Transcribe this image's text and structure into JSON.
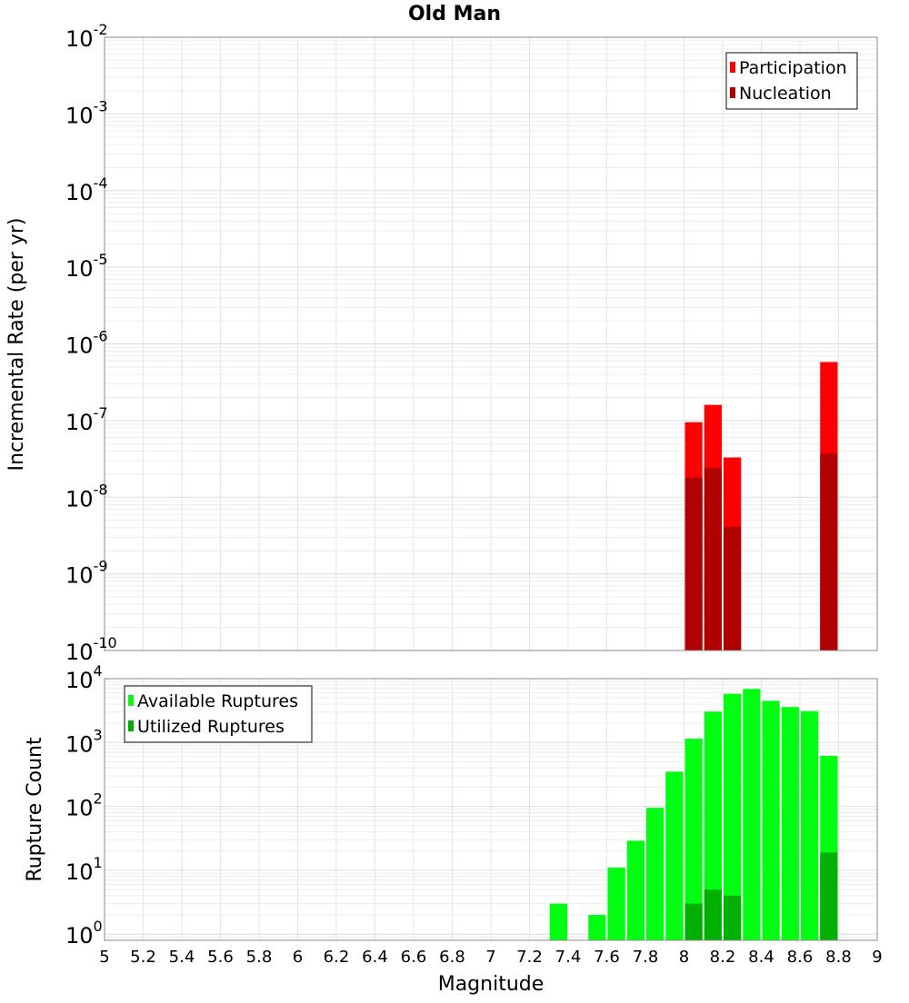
{
  "chart_data": [
    {
      "type": "bar",
      "title": "Old Man",
      "xlabel": "",
      "ylabel": "Incremental Rate (per yr)",
      "yscale": "log",
      "ylim": [
        1e-10,
        0.01
      ],
      "xlim": [
        5,
        9
      ],
      "grid": true,
      "legend": "top-right",
      "bin_width": 0.1,
      "series": [
        {
          "name": "Participation",
          "color": "#ff0000",
          "x": [
            8.05,
            8.15,
            8.25,
            8.75
          ],
          "values": [
            9.5e-08,
            1.6e-07,
            3.3e-08,
            5.8e-07
          ]
        },
        {
          "name": "Nucleation",
          "color": "#b00000",
          "x": [
            8.05,
            8.15,
            8.25,
            8.75
          ],
          "values": [
            1.8e-08,
            2.4e-08,
            4.1e-09,
            3.7e-08
          ]
        }
      ],
      "ytick_labels": [
        {
          "base": "10",
          "exp": "-10"
        },
        {
          "base": "10",
          "exp": "-9"
        },
        {
          "base": "10",
          "exp": "-8"
        },
        {
          "base": "10",
          "exp": "-7"
        },
        {
          "base": "10",
          "exp": "-6"
        },
        {
          "base": "10",
          "exp": "-5"
        },
        {
          "base": "10",
          "exp": "-4"
        },
        {
          "base": "10",
          "exp": "-3"
        },
        {
          "base": "10",
          "exp": "-2"
        }
      ]
    },
    {
      "type": "bar",
      "title": "",
      "xlabel": "Magnitude",
      "ylabel": "Rupture Count",
      "yscale": "log",
      "ylim": [
        0.8,
        10000
      ],
      "xlim": [
        5,
        9
      ],
      "grid": true,
      "legend": "top-left",
      "bin_width": 0.1,
      "series": [
        {
          "name": "Available Ruptures",
          "color": "#00ff10",
          "x": [
            7.35,
            7.55,
            7.65,
            7.75,
            7.85,
            7.95,
            8.05,
            8.15,
            8.25,
            8.35,
            8.45,
            8.55,
            8.65,
            8.75
          ],
          "values": [
            3,
            2,
            11,
            29,
            95,
            350,
            1150,
            3050,
            5800,
            6900,
            4500,
            3600,
            3100,
            620
          ]
        },
        {
          "name": "Utilized Ruptures",
          "color": "#00b000",
          "x": [
            8.05,
            8.15,
            8.25,
            8.75
          ],
          "values": [
            3,
            5,
            4,
            19
          ]
        }
      ],
      "ytick_labels": [
        {
          "base": "10",
          "exp": "0"
        },
        {
          "base": "10",
          "exp": "1"
        },
        {
          "base": "10",
          "exp": "2"
        },
        {
          "base": "10",
          "exp": "3"
        },
        {
          "base": "10",
          "exp": "4"
        }
      ],
      "xtick_labels": [
        "5",
        "5.2",
        "5.4",
        "5.6",
        "5.8",
        "6",
        "6.2",
        "6.4",
        "6.6",
        "6.8",
        "7",
        "7.2",
        "7.4",
        "7.6",
        "7.8",
        "8",
        "8.2",
        "8.4",
        "8.6",
        "8.8",
        "9"
      ]
    }
  ]
}
